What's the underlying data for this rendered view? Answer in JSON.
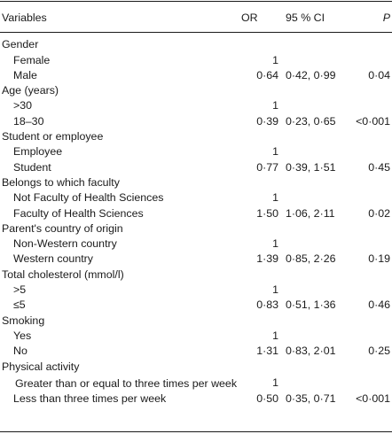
{
  "header": {
    "variables": "Variables",
    "or": "OR",
    "ci": "95 % CI",
    "p": "P"
  },
  "rows": [
    {
      "var": "Gender",
      "or": "",
      "ci": "",
      "p": ""
    },
    {
      "var": "Female",
      "or": "1",
      "ci": "",
      "p": ""
    },
    {
      "var": "Male",
      "or": "0·64",
      "ci": "0·42, 0·99",
      "p": "0·04"
    },
    {
      "var": "Age (years)",
      "or": "",
      "ci": "",
      "p": ""
    },
    {
      "var": ">30",
      "or": "1",
      "ci": "",
      "p": ""
    },
    {
      "var": "18–30",
      "or": "0·39",
      "ci": "0·23, 0·65",
      "p": "<0·001"
    },
    {
      "var": "Student or employee",
      "or": "",
      "ci": "",
      "p": ""
    },
    {
      "var": "Employee",
      "or": "1",
      "ci": "",
      "p": ""
    },
    {
      "var": "Student",
      "or": "0·77",
      "ci": "0·39, 1·51",
      "p": "0·45"
    },
    {
      "var": "Belongs to which faculty",
      "or": "",
      "ci": "",
      "p": ""
    },
    {
      "var": "Not Faculty of Health Sciences",
      "or": "1",
      "ci": "",
      "p": ""
    },
    {
      "var": "Faculty of Health Sciences",
      "or": "1·50",
      "ci": "1·06, 2·11",
      "p": "0·02"
    },
    {
      "var": "Parent's country of origin",
      "or": "",
      "ci": "",
      "p": ""
    },
    {
      "var": "Non-Western country",
      "or": "1",
      "ci": "",
      "p": ""
    },
    {
      "var": "Western country",
      "or": "1·39",
      "ci": "0·85, 2·26",
      "p": "0·19"
    },
    {
      "var": "Total cholesterol (mmol/l)",
      "or": "",
      "ci": "",
      "p": ""
    },
    {
      "var": ">5",
      "or": "1",
      "ci": "",
      "p": ""
    },
    {
      "var": "≤5",
      "or": "0·83",
      "ci": "0·51, 1·36",
      "p": "0·46"
    },
    {
      "var": "Smoking",
      "or": "",
      "ci": "",
      "p": ""
    },
    {
      "var": "Yes",
      "or": "1",
      "ci": "",
      "p": ""
    },
    {
      "var": "No",
      "or": "1·31",
      "ci": "0·83, 2·01",
      "p": "0·25"
    },
    {
      "var": "Physical activity",
      "or": "",
      "ci": "",
      "p": ""
    },
    {
      "var": "Greater than or equal to three times per week",
      "or": "1",
      "ci": "",
      "p": ""
    },
    {
      "var": "Less than three times per week",
      "or": "0·50",
      "ci": "0·35, 0·71",
      "p": "<0·001"
    }
  ]
}
